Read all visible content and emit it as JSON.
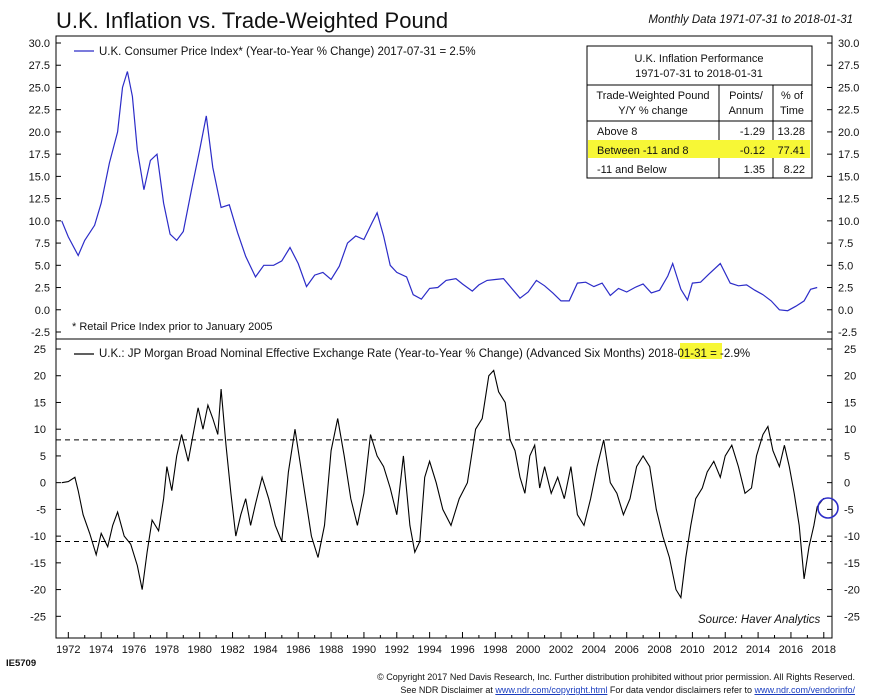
{
  "header": {
    "title": "U.K. Inflation vs. Trade-Weighted Pound",
    "subtitle": "Monthly Data 1971-07-31 to 2018-01-31"
  },
  "colors": {
    "cpi_line": "#2c2cc8",
    "fx_line": "#000000",
    "highlight": "#f7f736",
    "circle": "#2c2cc8"
  },
  "chart_data": [
    {
      "type": "line",
      "legend": "U.K. Consumer Price Index* (Year-to-Year % Change) 2017-07-31 = 2.5%",
      "note": "* Retail Price Index prior to January 2005",
      "ylim": [
        -2.5,
        30
      ],
      "yticks": [
        "30.0",
        "27.5",
        "25.0",
        "22.5",
        "20.0",
        "17.5",
        "15.0",
        "12.5",
        "10.0",
        "7.5",
        "5.0",
        "2.5",
        "0.0",
        "-2.5"
      ],
      "series": [
        {
          "values": [
            [
              1971.6,
              10.0
            ],
            [
              1972.0,
              8.2
            ],
            [
              1972.6,
              6.1
            ],
            [
              1973.0,
              7.8
            ],
            [
              1973.6,
              9.5
            ],
            [
              1974.0,
              12.0
            ],
            [
              1974.5,
              16.5
            ],
            [
              1975.0,
              20.0
            ],
            [
              1975.3,
              25.0
            ],
            [
              1975.6,
              26.8
            ],
            [
              1975.9,
              24.0
            ],
            [
              1976.2,
              18.0
            ],
            [
              1976.6,
              13.5
            ],
            [
              1977.0,
              16.8
            ],
            [
              1977.4,
              17.5
            ],
            [
              1977.8,
              12.0
            ],
            [
              1978.2,
              8.5
            ],
            [
              1978.6,
              7.8
            ],
            [
              1979.0,
              8.8
            ],
            [
              1979.5,
              13.5
            ],
            [
              1980.0,
              18.0
            ],
            [
              1980.4,
              21.8
            ],
            [
              1980.8,
              16.0
            ],
            [
              1981.3,
              11.5
            ],
            [
              1981.8,
              11.8
            ],
            [
              1982.3,
              8.7
            ],
            [
              1982.8,
              6.0
            ],
            [
              1983.4,
              3.7
            ],
            [
              1983.9,
              5.0
            ],
            [
              1984.5,
              5.0
            ],
            [
              1985.0,
              5.5
            ],
            [
              1985.5,
              7.0
            ],
            [
              1986.0,
              5.2
            ],
            [
              1986.5,
              2.6
            ],
            [
              1987.0,
              3.9
            ],
            [
              1987.5,
              4.2
            ],
            [
              1988.0,
              3.4
            ],
            [
              1988.5,
              4.9
            ],
            [
              1989.0,
              7.5
            ],
            [
              1989.5,
              8.3
            ],
            [
              1990.0,
              7.9
            ],
            [
              1990.5,
              9.8
            ],
            [
              1990.8,
              10.9
            ],
            [
              1991.2,
              8.3
            ],
            [
              1991.6,
              5.0
            ],
            [
              1992.0,
              4.2
            ],
            [
              1992.6,
              3.7
            ],
            [
              1993.0,
              1.7
            ],
            [
              1993.5,
              1.2
            ],
            [
              1994.0,
              2.4
            ],
            [
              1994.5,
              2.5
            ],
            [
              1995.0,
              3.3
            ],
            [
              1995.6,
              3.5
            ],
            [
              1996.0,
              2.9
            ],
            [
              1996.6,
              2.1
            ],
            [
              1997.0,
              2.8
            ],
            [
              1997.5,
              3.3
            ],
            [
              1998.0,
              3.4
            ],
            [
              1998.5,
              3.5
            ],
            [
              1999.0,
              2.4
            ],
            [
              1999.5,
              1.3
            ],
            [
              2000.0,
              2.0
            ],
            [
              2000.5,
              3.3
            ],
            [
              2001.0,
              2.7
            ],
            [
              2001.5,
              1.9
            ],
            [
              2002.0,
              1.0
            ],
            [
              2002.5,
              1.0
            ],
            [
              2003.0,
              3.0
            ],
            [
              2003.5,
              3.1
            ],
            [
              2004.0,
              2.6
            ],
            [
              2004.5,
              3.0
            ],
            [
              2005.0,
              1.6
            ],
            [
              2005.5,
              2.4
            ],
            [
              2006.0,
              2.0
            ],
            [
              2006.5,
              2.5
            ],
            [
              2007.0,
              2.9
            ],
            [
              2007.5,
              1.9
            ],
            [
              2008.0,
              2.2
            ],
            [
              2008.5,
              3.8
            ],
            [
              2008.8,
              5.2
            ],
            [
              2009.3,
              2.3
            ],
            [
              2009.7,
              1.1
            ],
            [
              2010.0,
              3.0
            ],
            [
              2010.5,
              3.1
            ],
            [
              2011.0,
              4.0
            ],
            [
              2011.7,
              5.2
            ],
            [
              2012.3,
              3.0
            ],
            [
              2012.8,
              2.7
            ],
            [
              2013.3,
              2.8
            ],
            [
              2013.8,
              2.2
            ],
            [
              2014.3,
              1.7
            ],
            [
              2014.8,
              1.0
            ],
            [
              2015.3,
              0.0
            ],
            [
              2015.8,
              -0.1
            ],
            [
              2016.3,
              0.4
            ],
            [
              2016.8,
              1.0
            ],
            [
              2017.2,
              2.3
            ],
            [
              2017.6,
              2.5
            ]
          ]
        }
      ]
    },
    {
      "type": "line",
      "legend_prefix": "U.K.: JP Morgan Broad Nominal Effective Exchange Rate (Year-to-Year % Change) (Advanced Six Months) 2018-01-31 = ",
      "legend_value": "-2.9%",
      "ylim": [
        -27,
        25
      ],
      "yticks": [
        "25",
        "20",
        "15",
        "10",
        "5",
        "0",
        "-5",
        "-10",
        "-15",
        "-20",
        "-25"
      ],
      "reference_lines": [
        8,
        -11
      ],
      "source": "Source:   Haver Analytics",
      "series": [
        {
          "values": [
            [
              1971.6,
              0
            ],
            [
              1972.0,
              0.2
            ],
            [
              1972.4,
              1.0
            ],
            [
              1972.6,
              -1.5
            ],
            [
              1972.9,
              -6.0
            ],
            [
              1973.3,
              -9.5
            ],
            [
              1973.7,
              -13.5
            ],
            [
              1974.0,
              -9.5
            ],
            [
              1974.4,
              -12.0
            ],
            [
              1974.7,
              -8.0
            ],
            [
              1975.0,
              -5.5
            ],
            [
              1975.4,
              -10.0
            ],
            [
              1975.8,
              -11.5
            ],
            [
              1976.2,
              -15.5
            ],
            [
              1976.5,
              -20.0
            ],
            [
              1976.8,
              -13.0
            ],
            [
              1977.1,
              -7.0
            ],
            [
              1977.5,
              -9.0
            ],
            [
              1977.8,
              -3.0
            ],
            [
              1978.0,
              3.0
            ],
            [
              1978.3,
              -1.5
            ],
            [
              1978.6,
              5.0
            ],
            [
              1978.9,
              9.0
            ],
            [
              1979.3,
              4.0
            ],
            [
              1979.6,
              9.0
            ],
            [
              1979.9,
              14.0
            ],
            [
              1980.2,
              10.0
            ],
            [
              1980.5,
              14.5
            ],
            [
              1980.8,
              12.0
            ],
            [
              1981.1,
              9.0
            ],
            [
              1981.3,
              17.5
            ],
            [
              1981.6,
              7.0
            ],
            [
              1981.9,
              -2.0
            ],
            [
              1982.2,
              -10.0
            ],
            [
              1982.5,
              -6.0
            ],
            [
              1982.8,
              -3.0
            ],
            [
              1983.1,
              -8.0
            ],
            [
              1983.4,
              -4.0
            ],
            [
              1983.8,
              1.0
            ],
            [
              1984.2,
              -3.0
            ],
            [
              1984.6,
              -8.0
            ],
            [
              1985.0,
              -11.0
            ],
            [
              1985.4,
              2.0
            ],
            [
              1985.8,
              10.0
            ],
            [
              1986.1,
              4.0
            ],
            [
              1986.4,
              -2.0
            ],
            [
              1986.8,
              -10.0
            ],
            [
              1987.2,
              -14.0
            ],
            [
              1987.6,
              -8.0
            ],
            [
              1988.0,
              6.0
            ],
            [
              1988.4,
              12.0
            ],
            [
              1988.8,
              5.0
            ],
            [
              1989.2,
              -3.0
            ],
            [
              1989.6,
              -8.0
            ],
            [
              1990.0,
              -2.0
            ],
            [
              1990.4,
              9.0
            ],
            [
              1990.8,
              5.0
            ],
            [
              1991.2,
              3.0
            ],
            [
              1991.6,
              -1.0
            ],
            [
              1992.0,
              -6.0
            ],
            [
              1992.4,
              5.0
            ],
            [
              1992.8,
              -8.0
            ],
            [
              1993.1,
              -13.0
            ],
            [
              1993.4,
              -11.0
            ],
            [
              1993.7,
              1.0
            ],
            [
              1994.0,
              4.0
            ],
            [
              1994.4,
              0.0
            ],
            [
              1994.8,
              -5.0
            ],
            [
              1995.3,
              -8.0
            ],
            [
              1995.8,
              -3.0
            ],
            [
              1996.3,
              0.0
            ],
            [
              1996.8,
              10.0
            ],
            [
              1997.2,
              12.0
            ],
            [
              1997.6,
              20.0
            ],
            [
              1997.9,
              21.0
            ],
            [
              1998.2,
              17.0
            ],
            [
              1998.6,
              15.0
            ],
            [
              1998.9,
              8.0
            ],
            [
              1999.2,
              6.0
            ],
            [
              1999.5,
              1.0
            ],
            [
              1999.8,
              -2.0
            ],
            [
              2000.1,
              5.0
            ],
            [
              2000.4,
              7.0
            ],
            [
              2000.7,
              -1.0
            ],
            [
              2001.0,
              3.0
            ],
            [
              2001.4,
              -2.0
            ],
            [
              2001.8,
              1.0
            ],
            [
              2002.2,
              -3.0
            ],
            [
              2002.6,
              3.0
            ],
            [
              2003.0,
              -6.0
            ],
            [
              2003.4,
              -8.0
            ],
            [
              2003.8,
              -3.0
            ],
            [
              2004.2,
              3.0
            ],
            [
              2004.6,
              8.0
            ],
            [
              2005.0,
              0.0
            ],
            [
              2005.4,
              -2.0
            ],
            [
              2005.8,
              -6.0
            ],
            [
              2006.2,
              -3.0
            ],
            [
              2006.6,
              3.0
            ],
            [
              2007.0,
              5.0
            ],
            [
              2007.4,
              3.0
            ],
            [
              2007.8,
              -5.0
            ],
            [
              2008.2,
              -10.0
            ],
            [
              2008.6,
              -14.0
            ],
            [
              2009.0,
              -20.0
            ],
            [
              2009.3,
              -21.5
            ],
            [
              2009.6,
              -14.0
            ],
            [
              2009.9,
              -8.0
            ],
            [
              2010.2,
              -3.0
            ],
            [
              2010.6,
              -1.0
            ],
            [
              2010.9,
              2.0
            ],
            [
              2011.3,
              4.0
            ],
            [
              2011.7,
              1.0
            ],
            [
              2012.0,
              5.0
            ],
            [
              2012.4,
              7.0
            ],
            [
              2012.8,
              3.0
            ],
            [
              2013.2,
              -2.0
            ],
            [
              2013.6,
              -1.0
            ],
            [
              2013.9,
              5.0
            ],
            [
              2014.3,
              9.0
            ],
            [
              2014.6,
              10.5
            ],
            [
              2014.9,
              6.0
            ],
            [
              2015.3,
              3.0
            ],
            [
              2015.6,
              7.0
            ],
            [
              2015.9,
              3.0
            ],
            [
              2016.2,
              -2.0
            ],
            [
              2016.5,
              -8.0
            ],
            [
              2016.8,
              -18.0
            ],
            [
              2017.1,
              -12.0
            ],
            [
              2017.4,
              -8.0
            ],
            [
              2017.6,
              -4.5
            ],
            [
              2018.0,
              -2.9
            ]
          ]
        }
      ]
    }
  ],
  "xaxis": {
    "ticks": [
      "1972",
      "1974",
      "1976",
      "1978",
      "1980",
      "1982",
      "1984",
      "1986",
      "1988",
      "1990",
      "1992",
      "1994",
      "1996",
      "1998",
      "2000",
      "2002",
      "2004",
      "2006",
      "2008",
      "2010",
      "2012",
      "2014",
      "2016",
      "2018"
    ]
  },
  "table": {
    "title_line1": "U.K. Inflation Performance",
    "title_line2": "1971-07-31 to 2018-01-31",
    "col1_line1": "Trade-Weighted Pound",
    "col1_line2": "Y/Y % change",
    "col2_line1": "Points/",
    "col2_line2": "Annum",
    "col3_line1": "% of",
    "col3_line2": "Time",
    "rows": [
      {
        "label": "Above 8",
        "points": "-1.29",
        "time": "13.28"
      },
      {
        "label": "Between -11 and 8",
        "points": "-0.12",
        "time": "77.41"
      },
      {
        "label": "-11 and Below",
        "points": "1.35",
        "time": "8.22"
      }
    ]
  },
  "footer": {
    "code": "IE5709",
    "line1": "© Copyright 2017 Ned Davis Research, Inc. Further distribution prohibited without prior permission. All Rights Reserved.",
    "line2a": "See NDR Disclaimer at ",
    "link1": "www.ndr.com/copyright.html",
    "line2b": "  For data vendor disclaimers refer to ",
    "link2": "www.ndr.com/vendorinfo/"
  }
}
